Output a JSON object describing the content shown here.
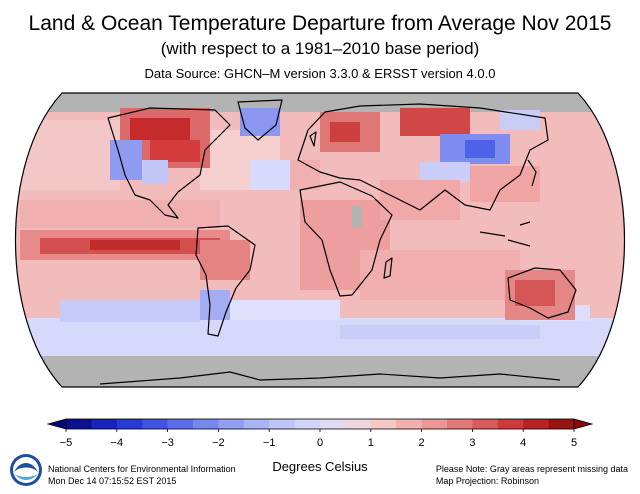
{
  "title": "Land & Ocean Temperature Departure from Average Nov 2015",
  "subtitle": "(with respect to a 1981–2010 base period)",
  "data_source": "Data Source: GHCN–M version 3.3.0 & ERSST version 4.0.0",
  "colorbar": {
    "ticks": [
      "−5",
      "−4",
      "−3",
      "−2",
      "−1",
      "0",
      "1",
      "2",
      "3",
      "4",
      "5"
    ],
    "tick_values": [
      -5,
      -4,
      -3,
      -2,
      -1,
      0,
      1,
      2,
      3,
      4,
      5
    ],
    "units": "Degrees Celsius",
    "colors": [
      "#08087a",
      "#1a2bd0",
      "#4d62e6",
      "#8593f0",
      "#b6bdf6",
      "#dadcfb",
      "#f6d2d2",
      "#f0a4a4",
      "#e06b6b",
      "#c82a2a",
      "#8a0b0b"
    ]
  },
  "footer": {
    "org": "National Centers for Environmental Information",
    "timestamp": "Mon Dec 14 07:15:52 EST 2015",
    "note": "Please Note: Gray areas represent missing data",
    "projection": "Map Projection: Robinson"
  },
  "colors": {
    "missing": "#b3b3b3",
    "ocean_default": "#f3b9b9",
    "warm_strong": "#c82a2a",
    "cold_moderate": "#8593f0"
  },
  "map_data": {
    "variable": "temperature anomaly (°C)",
    "base_period": "1981–2010",
    "regions": [
      {
        "name": "Arctic",
        "anomaly": null
      },
      {
        "name": "Northern Canada",
        "anomaly": 3.5
      },
      {
        "name": "Eastern Canada",
        "anomaly": 3.0
      },
      {
        "name": "Western North America",
        "anomaly": -1.5
      },
      {
        "name": "Greenland",
        "anomaly": -1.5
      },
      {
        "name": "Scandinavia / Europe",
        "anomaly": 2.5
      },
      {
        "name": "Eastern Europe",
        "anomaly": 1.5
      },
      {
        "name": "Siberia",
        "anomaly": 3.5
      },
      {
        "name": "Central Russia",
        "anomaly": -2.5
      },
      {
        "name": "Central Asia",
        "anomaly": -1.0
      },
      {
        "name": "East Asia",
        "anomaly": 1.5
      },
      {
        "name": "Equatorial Pacific (El Niño)",
        "anomaly": 3.0
      },
      {
        "name": "North Pacific",
        "anomaly": 1.0
      },
      {
        "name": "North Atlantic",
        "anomaly": 1.0
      },
      {
        "name": "Central Atlantic",
        "anomaly": 0.5
      },
      {
        "name": "Africa",
        "anomaly": 1.5
      },
      {
        "name": "Central Africa",
        "anomaly": null
      },
      {
        "name": "Middle East",
        "anomaly": 1.0
      },
      {
        "name": "India",
        "anomaly": 1.5
      },
      {
        "name": "South America (north)",
        "anomaly": 2.0
      },
      {
        "name": "Southern South America",
        "anomaly": -1.0
      },
      {
        "name": "Australia",
        "anomaly": 2.0
      },
      {
        "name": "Indian Ocean",
        "anomaly": 1.5
      },
      {
        "name": "Southern Ocean",
        "anomaly": -1.0
      },
      {
        "name": "Antarctica",
        "anomaly": null
      }
    ]
  }
}
